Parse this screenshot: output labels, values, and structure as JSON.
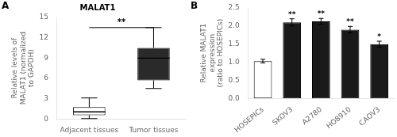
{
  "chart_data": [
    {
      "type": "box",
      "title": "MALAT1",
      "ylabel": "Relative levels of\nMALAT1 (normalized\nto GAPDH)",
      "categories": [
        "Adjacent tissues",
        "Tumor tissues"
      ],
      "whislo": [
        0.05,
        4.5
      ],
      "q1": [
        0.55,
        5.7
      ],
      "med": [
        1.05,
        9.0
      ],
      "q3": [
        1.75,
        10.5
      ],
      "whishi": [
        3.1,
        13.5
      ],
      "colors": [
        "white",
        "#2a2a2a"
      ],
      "ylim": [
        0,
        15
      ],
      "yticks": [
        0,
        3,
        6,
        9,
        12,
        15
      ],
      "grid": false,
      "annotations": [
        {
          "text": "A"
        },
        {
          "text": "**",
          "from": "Adjacent tissues",
          "to": "Tumor tissues",
          "y": 13.5
        }
      ]
    },
    {
      "type": "bar",
      "ylabel": "Relative MALAT1\nexpression\n(ratio to HOSEPICs)",
      "categories": [
        "HOSEPICs",
        "SKOV3",
        "A2780",
        "HO8910",
        "CAOV3"
      ],
      "values": [
        1.03,
        2.1,
        2.13,
        1.9,
        1.5
      ],
      "errors": [
        0.05,
        0.1,
        0.08,
        0.09,
        0.08
      ],
      "colors": [
        "white",
        "#1a1a1a",
        "#1a1a1a",
        "#1a1a1a",
        "#1a1a1a"
      ],
      "ylim": [
        0,
        2.5
      ],
      "yticks": [
        {
          "value": 0,
          "label": "0.0"
        },
        0.5,
        {
          "value": 1.0,
          "label": "1.0"
        },
        1.5,
        {
          "value": 2.0,
          "label": "2.0"
        },
        2.5
      ],
      "grid": false,
      "annotations": [
        {
          "text": "B"
        },
        {
          "text": "**",
          "category": "SKOV3"
        },
        {
          "text": "**",
          "category": "A2780"
        },
        {
          "text": "**",
          "category": "HO8910"
        },
        {
          "text": "*",
          "category": "CAOV3"
        }
      ]
    }
  ]
}
